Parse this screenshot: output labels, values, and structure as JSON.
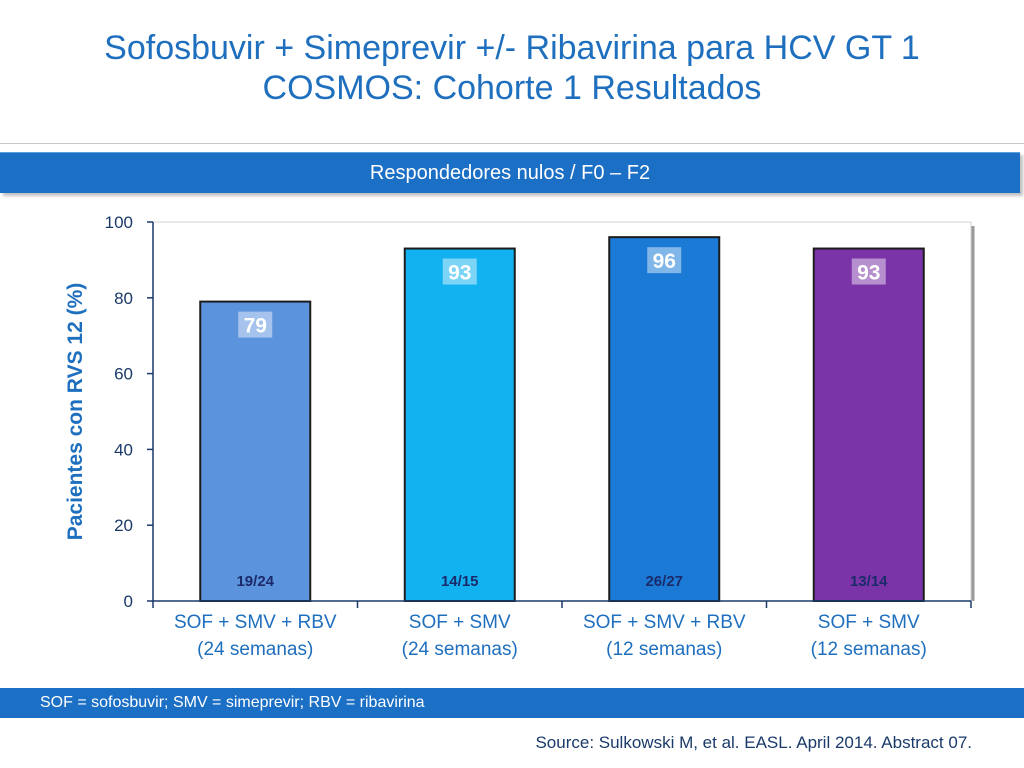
{
  "slide": {
    "title_line1": "Sofosbuvir + Simeprevir +/- Ribavirina para HCV GT 1",
    "title_line2": "COSMOS: Cohorte 1 Resultados",
    "banner": "Respondedores nulos / F0 – F2",
    "footnote": "SOF = sofosbuvir; SMV = simeprevir; RBV = ribavirina",
    "source": "Source: Sulkowski M, et al. EASL. April 2014.  Abstract 07."
  },
  "chart_data": {
    "type": "bar",
    "categories": [
      [
        "SOF + SMV + RBV",
        "(24 semanas)"
      ],
      [
        "SOF + SMV",
        "(24 semanas)"
      ],
      [
        "SOF + SMV + RBV",
        "(12 semanas)"
      ],
      [
        "SOF + SMV",
        "(12 semanas)"
      ]
    ],
    "values": [
      79,
      93,
      96,
      93
    ],
    "value_labels": [
      "79",
      "93",
      "96",
      "93"
    ],
    "n_labels": [
      "19/24",
      "14/15",
      "26/27",
      "13/14"
    ],
    "colors": [
      "#5b93dc",
      "#12b2f0",
      "#1b7ad6",
      "#7b34a8"
    ],
    "ylabel": "Pacientes con RVS 12 (%)",
    "ylim": [
      0,
      100
    ],
    "yticks": [
      0,
      20,
      40,
      60,
      80,
      100
    ],
    "axis_color": "#1a3a6a",
    "label_color": "#1f6fbf"
  }
}
